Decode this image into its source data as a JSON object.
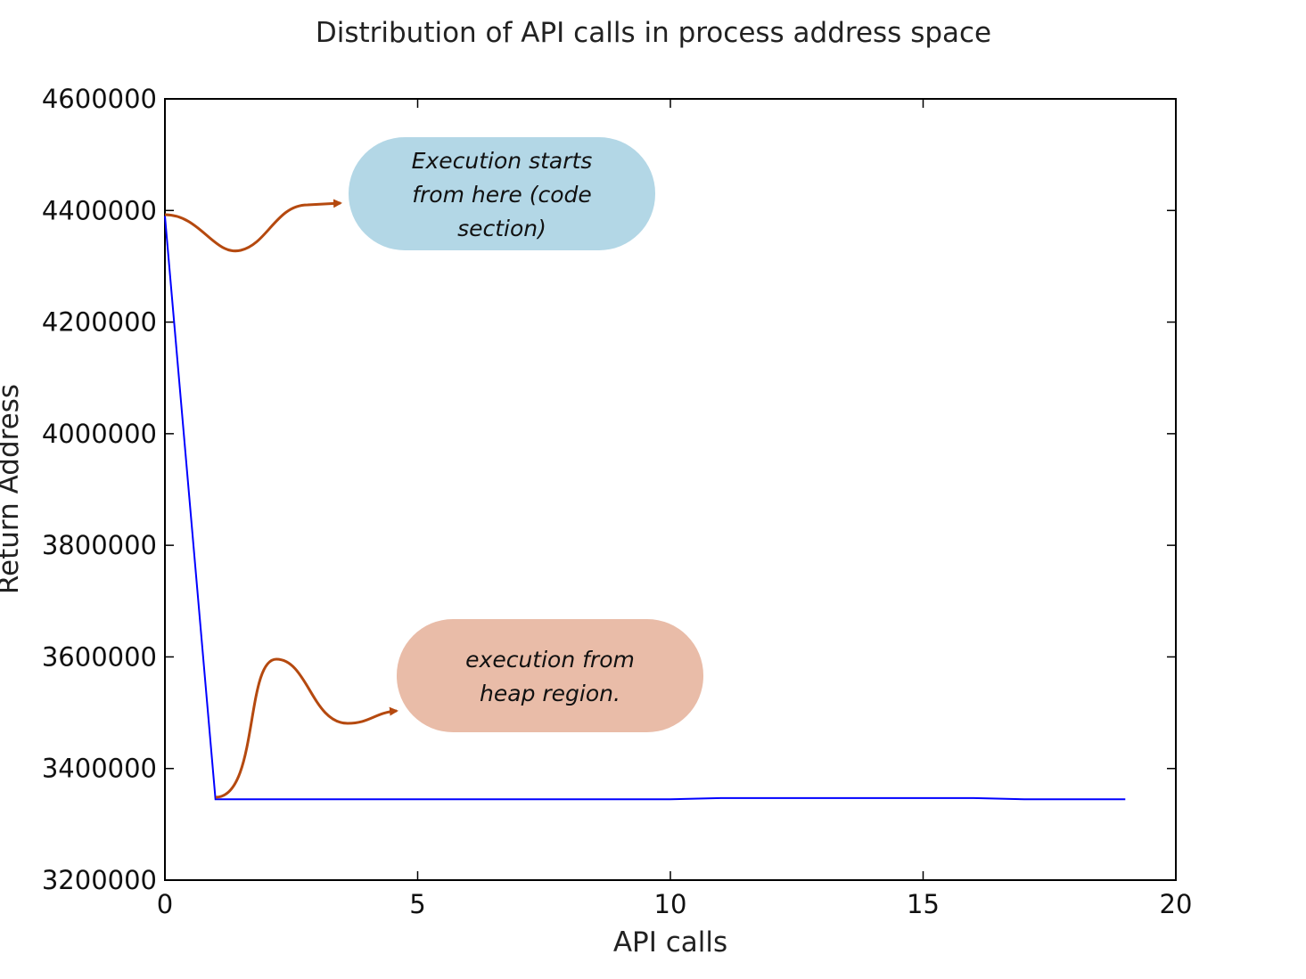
{
  "chart_data": {
    "type": "line",
    "title": "Distribution of API calls in process address space",
    "xlabel": "API calls",
    "ylabel": "Return Address",
    "xlim": [
      0,
      20
    ],
    "ylim": [
      3200000,
      4600000
    ],
    "xticks": [
      0,
      5,
      10,
      15,
      20
    ],
    "yticks": [
      3200000,
      3400000,
      3600000,
      3800000,
      4000000,
      4200000,
      4400000,
      4600000
    ],
    "grid": false,
    "series": [
      {
        "color": "#0000ff",
        "x": [
          0,
          1,
          2,
          3,
          4,
          5,
          6,
          7,
          8,
          9,
          10,
          11,
          12,
          13,
          14,
          15,
          16,
          17,
          18,
          19
        ],
        "y": [
          4390000,
          3345000,
          3345000,
          3345000,
          3345000,
          3345000,
          3345000,
          3345000,
          3345000,
          3345000,
          3345000,
          3347000,
          3347000,
          3347000,
          3347000,
          3347000,
          3347000,
          3345000,
          3345000,
          3345000
        ]
      }
    ],
    "annotations": [
      {
        "text_lines": [
          "Execution starts",
          "from here (code",
          "section)"
        ],
        "fill": "#b3d7e6",
        "arrow_color": "#b5490f"
      },
      {
        "text_lines": [
          "execution from",
          "heap region."
        ],
        "fill": "#e9bca8",
        "arrow_color": "#b5490f"
      }
    ]
  }
}
